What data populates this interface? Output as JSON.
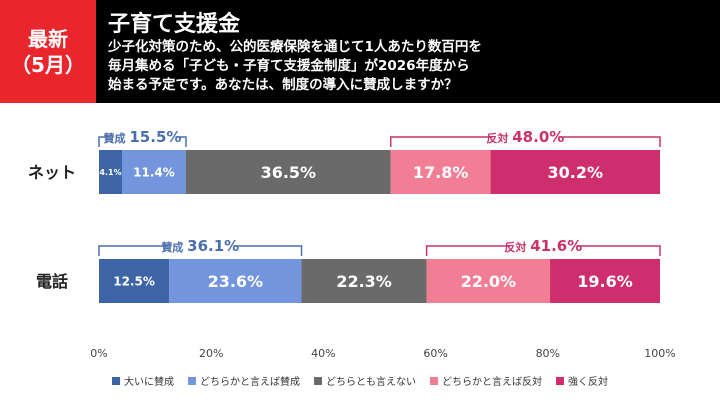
{
  "badge": {
    "line1": "最新",
    "line2": "（5月）"
  },
  "title": "子育て支援金",
  "subtitle": [
    "少子化対策のため、公的医療保険を通じて1人あたり数百円を",
    "毎月集める「子ども・子育て支援金制度」が2026年度から",
    "始まる予定です。あなたは、制度の導入に賛成しますか？"
  ],
  "colors": {
    "accent": "#e8262b",
    "support": "#4a6fae",
    "oppose": "#c8336b",
    "series": [
      "#3e64a8",
      "#7295dd",
      "#6b6a6a",
      "#f27e96",
      "#cf2e6e"
    ]
  },
  "chart_data": {
    "type": "bar",
    "orientation": "horizontal",
    "stacked": true,
    "categories": [
      "ネット",
      "電話"
    ],
    "series": [
      {
        "name": "大いに賛成",
        "values": [
          4.1,
          12.5
        ],
        "labels": [
          "4.1%",
          "12.5%"
        ]
      },
      {
        "name": "どちらかと言えば賛成",
        "values": [
          11.4,
          23.6
        ],
        "labels": [
          "11.4%",
          "23.6%"
        ]
      },
      {
        "name": "どちらとも言えない",
        "values": [
          36.5,
          22.3
        ],
        "labels": [
          "36.5%",
          "22.3%"
        ]
      },
      {
        "name": "どちらかと言えば反対",
        "values": [
          17.8,
          22.0
        ],
        "labels": [
          "17.8%",
          "22.0%"
        ]
      },
      {
        "name": "強く反対",
        "values": [
          30.2,
          19.6
        ],
        "labels": [
          "30.2%",
          "19.6%"
        ]
      }
    ],
    "xlim": [
      0,
      100
    ],
    "xticks": [
      "0%",
      "20%",
      "40%",
      "60%",
      "80%",
      "100%"
    ],
    "annotations": [
      {
        "row": 0,
        "side": "support",
        "label": "賛成",
        "value": "15.5%"
      },
      {
        "row": 0,
        "side": "oppose",
        "label": "反対",
        "value": "48.0%"
      },
      {
        "row": 1,
        "side": "support",
        "label": "賛成",
        "value": "36.1%"
      },
      {
        "row": 1,
        "side": "oppose",
        "label": "反対",
        "value": "41.6%"
      }
    ],
    "legend_position": "bottom"
  }
}
